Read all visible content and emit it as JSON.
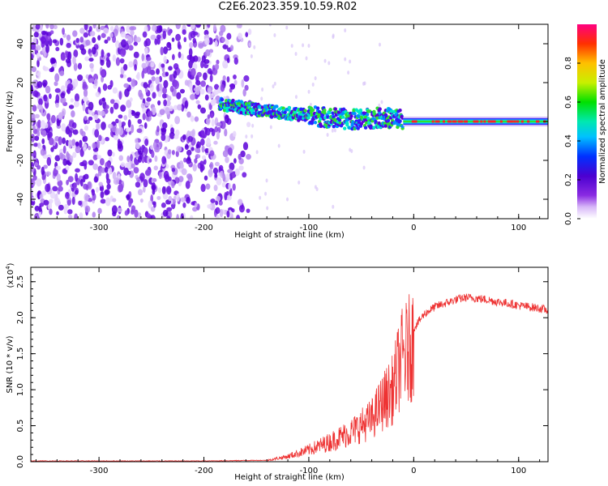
{
  "title": "C2E6.2023.359.10.59.R02",
  "chart_data": [
    {
      "type": "heatmap",
      "name": "spectrogram",
      "xlabel": "Height of straight line (km)",
      "ylabel": "Frequency (Hz)",
      "xlim": [
        -365,
        128
      ],
      "ylim": [
        -50,
        50
      ],
      "xticks": [
        -300,
        -200,
        -100,
        0,
        100
      ],
      "xtick_labels": [
        "-300",
        "-200",
        "-100",
        "0",
        "100"
      ],
      "yticks": [
        -40,
        -20,
        0,
        20,
        40
      ],
      "ytick_labels": [
        "-40",
        "-20",
        "0",
        "20",
        "40"
      ],
      "colorbar": {
        "label": "Normalized spectral amplitude",
        "range": [
          0,
          1
        ],
        "ticks": [
          0.0,
          0.2,
          0.4,
          0.6,
          0.8
        ],
        "tick_labels": [
          "0.0",
          "0.2",
          "0.4",
          "0.6",
          "0.8"
        ]
      },
      "features": {
        "noise_region_x": [
          -365,
          -160
        ],
        "signal_start_x": -185,
        "signal_band_center_hz": [
          [
            -185,
            9
          ],
          [
            -150,
            6
          ],
          [
            -100,
            3
          ],
          [
            -60,
            1
          ],
          [
            -30,
            2
          ],
          [
            0,
            1
          ],
          [
            128,
            0
          ]
        ]
      }
    },
    {
      "type": "line",
      "name": "snr",
      "xlabel": "Height of straight line (km)",
      "ylabel": "SNR (10 * v/v)",
      "y_multiplier_label": "(x10",
      "y_multiplier_exp": "4",
      "y_multiplier_close": ")",
      "xlim": [
        -365,
        128
      ],
      "ylim": [
        0,
        2.7
      ],
      "xticks": [
        -300,
        -200,
        -100,
        0,
        100
      ],
      "xtick_labels": [
        "-300",
        "-200",
        "-100",
        "0",
        "100"
      ],
      "yticks": [
        0.0,
        0.5,
        1.0,
        1.5,
        2.0,
        2.5
      ],
      "ytick_labels": [
        "0.0",
        "0.5",
        "1.0",
        "1.5",
        "2.0",
        "2.5"
      ],
      "color": "#ee3333",
      "envelope": {
        "x": [
          -365,
          -200,
          -140,
          -120,
          -100,
          -80,
          -60,
          -40,
          -30,
          -20,
          -15,
          -12,
          -5,
          0,
          10,
          20,
          30,
          40,
          50,
          60,
          70,
          80,
          90,
          100,
          110,
          120,
          128
        ],
        "y": [
          0.01,
          0.01,
          0.02,
          0.08,
          0.18,
          0.3,
          0.45,
          0.65,
          0.9,
          1.1,
          1.4,
          1.55,
          1.7,
          1.85,
          2.05,
          2.15,
          2.2,
          2.25,
          2.28,
          2.27,
          2.25,
          2.22,
          2.2,
          2.17,
          2.15,
          2.13,
          2.1
        ]
      }
    }
  ]
}
